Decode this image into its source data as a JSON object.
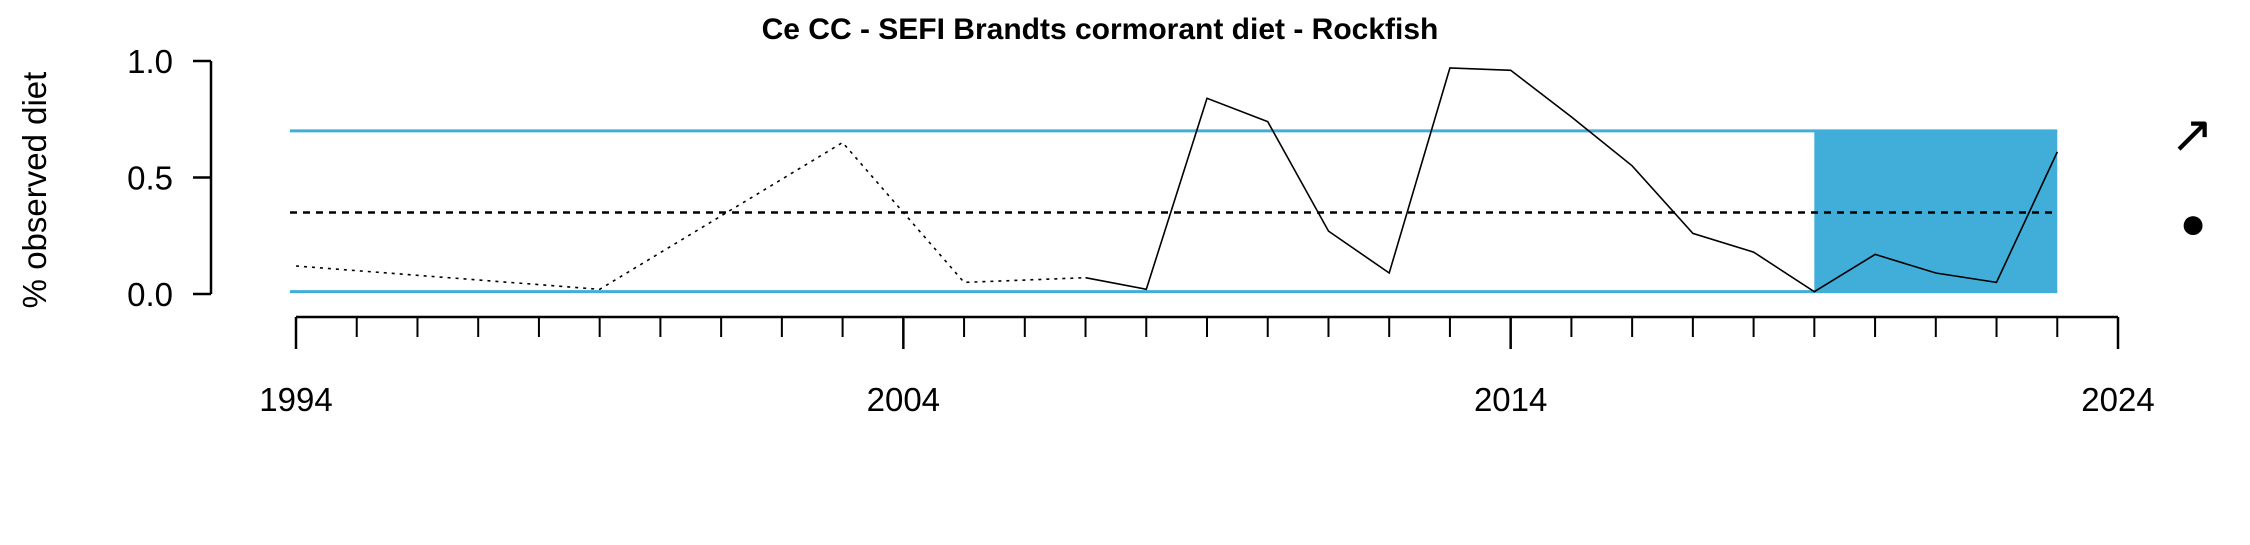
{
  "chart_data": {
    "type": "line",
    "title": "Ce CC - SEFI Brandts cormorant diet - Rockfish",
    "ylabel": "% observed diet",
    "xlabel": "",
    "xlim": [
      1994,
      2024
    ],
    "ylim": [
      0,
      1.0
    ],
    "x_ticks": [
      1994,
      2004,
      2014,
      2024
    ],
    "y_ticks": [
      0.0,
      0.5,
      1.0
    ],
    "y_tick_labels": [
      "0.0",
      "0.5",
      "1.0"
    ],
    "grid": false,
    "series": [
      {
        "style": "dotted",
        "x": [
          1994,
          1999,
          2003,
          2005,
          2007
        ],
        "y": [
          0.12,
          0.02,
          0.65,
          0.05,
          0.07
        ]
      },
      {
        "style": "solid",
        "x": [
          2007,
          2008,
          2009,
          2010,
          2011,
          2012,
          2013,
          2014,
          2015,
          2016,
          2017,
          2018,
          2019,
          2020,
          2021,
          2022,
          2023
        ],
        "y": [
          0.07,
          0.02,
          0.84,
          0.74,
          0.27,
          0.09,
          0.97,
          0.96,
          0.76,
          0.55,
          0.26,
          0.18,
          0.01,
          0.17,
          0.09,
          0.05,
          0.61
        ]
      }
    ],
    "reference_lines": {
      "upper_sd": 0.7,
      "mean": 0.35,
      "lower_sd": 0.01,
      "line_color": "#41aed9",
      "mean_color": "#000000"
    },
    "recent_window": {
      "x_start": 2019,
      "x_end": 2023,
      "y_low": 0.01,
      "y_high": 0.7,
      "color": "#41aed9"
    },
    "indicators": {
      "trend_symbol": "↗",
      "mean_symbol": "●"
    }
  }
}
